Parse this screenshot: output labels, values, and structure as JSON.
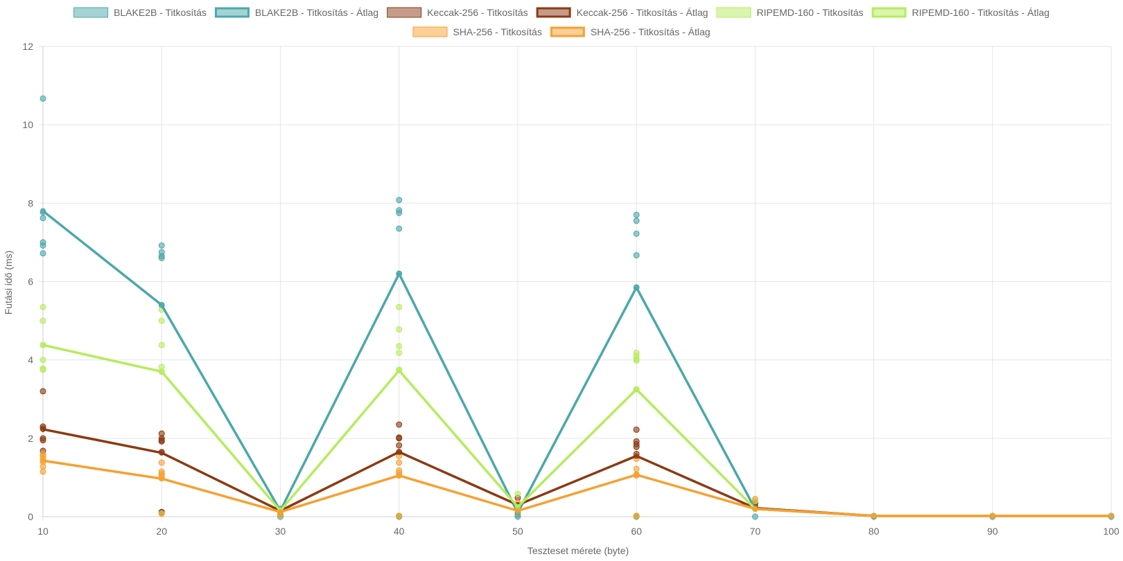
{
  "chart_data": {
    "type": "scatter",
    "xlabel": "Teszteset mérete (byte)",
    "ylabel": "Futási idő (ms)",
    "xlim": [
      10,
      100
    ],
    "ylim": [
      0,
      12
    ],
    "xticks": [
      10,
      20,
      30,
      40,
      50,
      60,
      70,
      80,
      90,
      100
    ],
    "yticks": [
      0,
      2,
      4,
      6,
      8,
      10,
      12
    ],
    "grid": true,
    "legend_position": "top",
    "legend": [
      {
        "label": "BLAKE2B - Titkosítás",
        "kind": "points",
        "color": "#4BA8AA"
      },
      {
        "label": "BLAKE2B - Titkosítás - Átlag",
        "kind": "line",
        "color": "#4BA8AA"
      },
      {
        "label": "Keccak-256 - Titkosítás",
        "kind": "points",
        "color": "#8B3A13"
      },
      {
        "label": "Keccak-256 - Titkosítás - Átlag",
        "kind": "line",
        "color": "#8B3A13"
      },
      {
        "label": "RIPEMD-160 - Titkosítás",
        "kind": "points",
        "color": "#B5EC5C"
      },
      {
        "label": "RIPEMD-160 - Titkosítás - Átlag",
        "kind": "line",
        "color": "#B5EC5C"
      },
      {
        "label": "SHA-256 - Titkosítás",
        "kind": "points",
        "color": "#F7A030"
      },
      {
        "label": "SHA-256 - Titkosítás - Átlag",
        "kind": "line",
        "color": "#F7A030"
      }
    ],
    "series": [
      {
        "name": "BLAKE2B - Titkosítás",
        "kind": "scatter",
        "color": "#4BA8AA",
        "points": [
          [
            10,
            10.67
          ],
          [
            10,
            7.77
          ],
          [
            10,
            7.62
          ],
          [
            10,
            7.0
          ],
          [
            10,
            6.92
          ],
          [
            10,
            6.72
          ],
          [
            20,
            6.92
          ],
          [
            20,
            6.75
          ],
          [
            20,
            6.65
          ],
          [
            20,
            6.6
          ],
          [
            20,
            5.4
          ],
          [
            20,
            0.1
          ],
          [
            30,
            0.2
          ],
          [
            30,
            0.05
          ],
          [
            30,
            0.0
          ],
          [
            40,
            8.08
          ],
          [
            40,
            7.82
          ],
          [
            40,
            7.75
          ],
          [
            40,
            7.35
          ],
          [
            40,
            6.2
          ],
          [
            40,
            0.0
          ],
          [
            50,
            0.2
          ],
          [
            50,
            0.05
          ],
          [
            50,
            0.0
          ],
          [
            60,
            7.7
          ],
          [
            60,
            7.55
          ],
          [
            60,
            7.22
          ],
          [
            60,
            6.67
          ],
          [
            60,
            5.85
          ],
          [
            60,
            0.0
          ],
          [
            70,
            0.3
          ],
          [
            70,
            0.2
          ],
          [
            70,
            0.0
          ],
          [
            80,
            0.02
          ],
          [
            80,
            0.0
          ],
          [
            90,
            0.02
          ],
          [
            90,
            0.0
          ],
          [
            100,
            0.02
          ],
          [
            100,
            0.0
          ]
        ]
      },
      {
        "name": "BLAKE2B - Titkosítás - Átlag",
        "kind": "line",
        "color": "#4BA8AA",
        "points": [
          [
            10,
            7.8
          ],
          [
            20,
            5.4
          ],
          [
            30,
            0.15
          ],
          [
            40,
            6.2
          ],
          [
            50,
            0.1
          ],
          [
            60,
            5.85
          ],
          [
            70,
            0.2
          ],
          [
            80,
            0.02
          ],
          [
            90,
            0.02
          ],
          [
            100,
            0.02
          ]
        ]
      },
      {
        "name": "Keccak-256 - Titkosítás",
        "kind": "scatter",
        "color": "#8B3A13",
        "points": [
          [
            10,
            3.2
          ],
          [
            10,
            2.3
          ],
          [
            10,
            2.25
          ],
          [
            10,
            2.0
          ],
          [
            10,
            1.95
          ],
          [
            10,
            1.68
          ],
          [
            20,
            2.12
          ],
          [
            20,
            2.0
          ],
          [
            20,
            1.95
          ],
          [
            20,
            1.92
          ],
          [
            20,
            1.65
          ],
          [
            20,
            0.12
          ],
          [
            30,
            0.12
          ],
          [
            30,
            0.05
          ],
          [
            40,
            2.35
          ],
          [
            40,
            2.02
          ],
          [
            40,
            2.0
          ],
          [
            40,
            1.82
          ],
          [
            40,
            1.65
          ],
          [
            40,
            0.02
          ],
          [
            50,
            0.48
          ],
          [
            50,
            0.3
          ],
          [
            50,
            0.15
          ],
          [
            60,
            2.22
          ],
          [
            60,
            1.92
          ],
          [
            60,
            1.85
          ],
          [
            60,
            1.78
          ],
          [
            60,
            1.6
          ],
          [
            60,
            0.02
          ],
          [
            70,
            0.35
          ],
          [
            70,
            0.25
          ]
        ]
      },
      {
        "name": "Keccak-256 - Titkosítás - Átlag",
        "kind": "line",
        "color": "#8B3A13",
        "points": [
          [
            10,
            2.23
          ],
          [
            20,
            1.63
          ],
          [
            30,
            0.15
          ],
          [
            40,
            1.65
          ],
          [
            50,
            0.3
          ],
          [
            60,
            1.55
          ],
          [
            70,
            0.22
          ],
          [
            80,
            0.02
          ],
          [
            90,
            0.02
          ],
          [
            100,
            0.02
          ]
        ]
      },
      {
        "name": "RIPEMD-160 - Titkosítás",
        "kind": "scatter",
        "color": "#B5EC5C",
        "points": [
          [
            10,
            5.35
          ],
          [
            10,
            5.0
          ],
          [
            10,
            4.38
          ],
          [
            10,
            4.0
          ],
          [
            10,
            3.78
          ],
          [
            10,
            3.75
          ],
          [
            20,
            5.28
          ],
          [
            20,
            5.0
          ],
          [
            20,
            4.38
          ],
          [
            20,
            3.82
          ],
          [
            20,
            3.7
          ],
          [
            20,
            0.08
          ],
          [
            30,
            0.15
          ],
          [
            30,
            0.05
          ],
          [
            40,
            5.35
          ],
          [
            40,
            4.78
          ],
          [
            40,
            4.35
          ],
          [
            40,
            4.18
          ],
          [
            40,
            3.75
          ],
          [
            40,
            0.02
          ],
          [
            50,
            0.58
          ],
          [
            50,
            0.3
          ],
          [
            50,
            0.12
          ],
          [
            60,
            4.18
          ],
          [
            60,
            4.1
          ],
          [
            60,
            4.02
          ],
          [
            60,
            3.98
          ],
          [
            60,
            3.25
          ],
          [
            60,
            0.02
          ],
          [
            70,
            0.4
          ],
          [
            70,
            0.2
          ]
        ]
      },
      {
        "name": "RIPEMD-160 - Titkosítás - Átlag",
        "kind": "line",
        "color": "#B5EC5C",
        "points": [
          [
            10,
            4.38
          ],
          [
            20,
            3.7
          ],
          [
            30,
            0.15
          ],
          [
            40,
            3.73
          ],
          [
            50,
            0.25
          ],
          [
            60,
            3.25
          ],
          [
            70,
            0.2
          ],
          [
            80,
            0.02
          ],
          [
            90,
            0.02
          ],
          [
            100,
            0.02
          ]
        ]
      },
      {
        "name": "SHA-256 - Titkosítás",
        "kind": "scatter",
        "color": "#F7A030",
        "points": [
          [
            10,
            1.6
          ],
          [
            10,
            1.55
          ],
          [
            10,
            1.48
          ],
          [
            10,
            1.4
          ],
          [
            10,
            1.28
          ],
          [
            10,
            1.15
          ],
          [
            20,
            1.38
          ],
          [
            20,
            1.15
          ],
          [
            20,
            1.1
          ],
          [
            20,
            1.05
          ],
          [
            20,
            0.98
          ],
          [
            20,
            0.08
          ],
          [
            30,
            0.12
          ],
          [
            30,
            0.05
          ],
          [
            40,
            1.55
          ],
          [
            40,
            1.38
          ],
          [
            40,
            1.18
          ],
          [
            40,
            1.12
          ],
          [
            40,
            1.05
          ],
          [
            40,
            0.02
          ],
          [
            50,
            0.35
          ],
          [
            50,
            0.18
          ],
          [
            50,
            0.1
          ],
          [
            60,
            1.55
          ],
          [
            60,
            1.48
          ],
          [
            60,
            1.22
          ],
          [
            60,
            1.08
          ],
          [
            60,
            1.05
          ],
          [
            60,
            0.02
          ],
          [
            70,
            0.45
          ],
          [
            70,
            0.22
          ]
        ]
      },
      {
        "name": "SHA-256 - Titkosítás - Átlag",
        "kind": "line",
        "color": "#F7A030",
        "points": [
          [
            10,
            1.43
          ],
          [
            20,
            0.97
          ],
          [
            30,
            0.12
          ],
          [
            40,
            1.05
          ],
          [
            50,
            0.15
          ],
          [
            60,
            1.07
          ],
          [
            70,
            0.2
          ],
          [
            80,
            0.02
          ],
          [
            90,
            0.02
          ],
          [
            100,
            0.02
          ]
        ]
      }
    ]
  }
}
